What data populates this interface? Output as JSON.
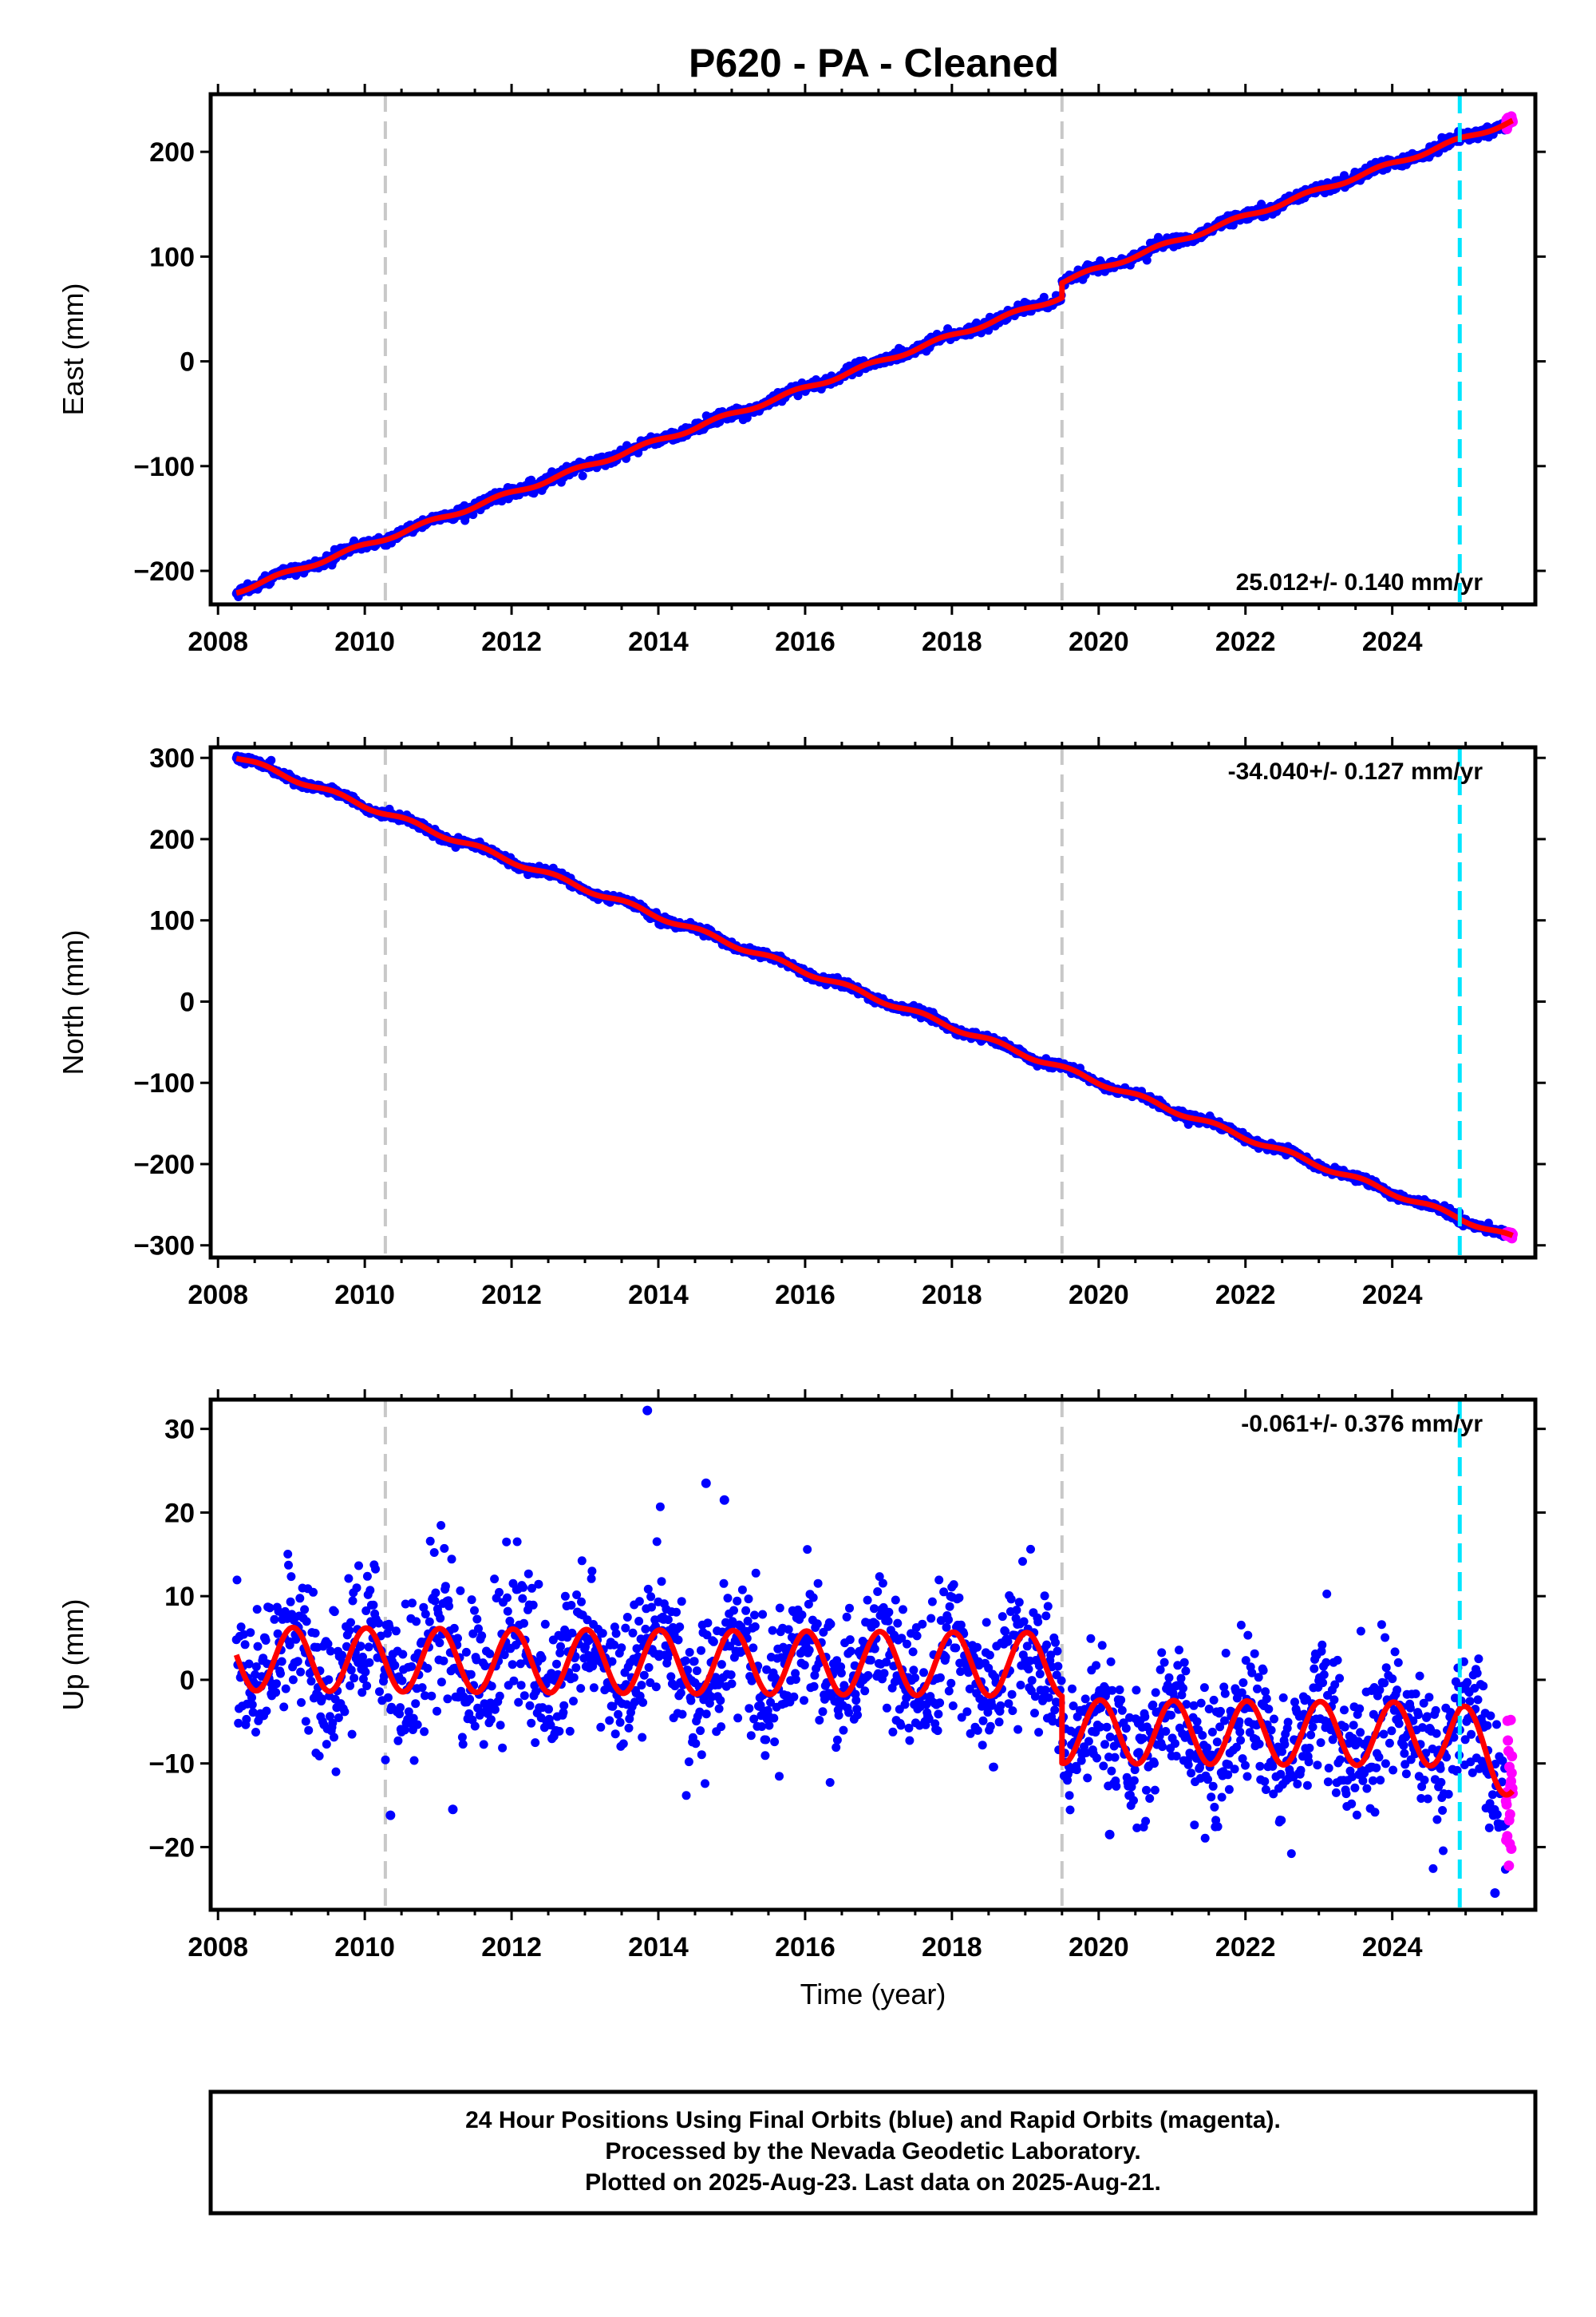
{
  "title": "P620  - PA - Cleaned",
  "footer": {
    "line1": "24 Hour Positions Using Final Orbits (blue) and Rapid Orbits (magenta).",
    "line2": "Processed by the Nevada Geodetic Laboratory.",
    "line3": "Plotted on 2025-Aug-23. Last data on 2025-Aug-21."
  },
  "colors": {
    "final_orbits": "#0000ff",
    "rapid_orbits": "#ff00ff",
    "model_fit": "#ff0000",
    "equipment_change_lines": "#c8c8c8",
    "recent_marker_line": "#00e5ff"
  },
  "chart_data": [
    {
      "type": "scatter",
      "ylabel": "East (mm)",
      "xlabel": "",
      "xlim": [
        2007.9,
        2025.95
      ],
      "ylim": [
        -232,
        255
      ],
      "xticks": [
        2008,
        2010,
        2012,
        2014,
        2016,
        2018,
        2020,
        2022,
        2024
      ],
      "yticks": [
        -200,
        -100,
        0,
        100,
        200
      ],
      "rate_label": "25.012+/- 0.140 mm/yr",
      "rate_label_position": "bottom-right",
      "model": {
        "x_start": 2008.25,
        "y_start": -219.5,
        "rate_mm_per_yr": 25.012,
        "offset_year": 2019.5,
        "offset_mm": 14,
        "seasonal_amplitude_mm": 2,
        "seasonal_phase_year": 0.6
      },
      "final_orbits_range": [
        2008.25,
        2025.55
      ],
      "rapid_orbits_range": [
        2025.55,
        2025.64
      ],
      "scatter_noise_mm": 2.5,
      "equipment_change_years": [
        2010.28,
        2019.5
      ],
      "recent_marker_year": 2024.92
    },
    {
      "type": "scatter",
      "ylabel": "North (mm)",
      "xlabel": "",
      "xlim": [
        2007.9,
        2025.95
      ],
      "ylim": [
        -315,
        313
      ],
      "xticks": [
        2008,
        2010,
        2012,
        2014,
        2016,
        2018,
        2020,
        2022,
        2024
      ],
      "yticks": [
        -300,
        -200,
        -100,
        0,
        100,
        200,
        300
      ],
      "rate_label": "-34.040+/- 0.127 mm/yr",
      "rate_label_position": "top-right",
      "model": {
        "x_start": 2008.25,
        "y_start": 301,
        "rate_mm_per_yr": -34.04,
        "offset_year": 2019.5,
        "offset_mm": 0,
        "seasonal_amplitude_mm": 3,
        "seasonal_phase_year": 0.35
      },
      "final_orbits_range": [
        2008.25,
        2025.55
      ],
      "rapid_orbits_range": [
        2025.55,
        2025.64
      ],
      "scatter_noise_mm": 2.5,
      "equipment_change_years": [
        2010.28,
        2019.5
      ],
      "recent_marker_year": 2024.92
    },
    {
      "type": "scatter",
      "ylabel": "Up (mm)",
      "xlabel": "Time (year)",
      "xlim": [
        2007.9,
        2025.95
      ],
      "ylim": [
        -27.5,
        33.5
      ],
      "xticks": [
        2008,
        2010,
        2012,
        2014,
        2016,
        2018,
        2020,
        2022,
        2024
      ],
      "yticks": [
        -20,
        -10,
        0,
        10,
        20,
        30
      ],
      "rate_label": "-0.061+/- 0.376 mm/yr",
      "rate_label_position": "top-right",
      "model": {
        "x_start": 2008.25,
        "y_start": 2.5,
        "rate_mm_per_yr": -0.061,
        "offset_year": 2019.5,
        "offset_mm": -8,
        "seasonal_amplitude_mm": 3.8,
        "seasonal_phase_year": 0.77,
        "post_2024_slope_mm_per_yr": -5.5,
        "post_2024_start": 2024.92
      },
      "final_orbits_range": [
        2008.25,
        2025.55
      ],
      "rapid_orbits_range": [
        2025.55,
        2025.64
      ],
      "scatter_noise_mm": 4.2,
      "outliers": [
        [
          2013.85,
          32.2
        ],
        [
          2014.65,
          23.5
        ],
        [
          2014.9,
          21.5
        ],
        [
          2010.35,
          -16.2
        ],
        [
          2011.2,
          -15.5
        ],
        [
          2025.4,
          -25.5
        ],
        [
          2020.15,
          -18.5
        ]
      ],
      "equipment_change_years": [
        2010.28,
        2019.5
      ],
      "recent_marker_year": 2024.92
    }
  ]
}
